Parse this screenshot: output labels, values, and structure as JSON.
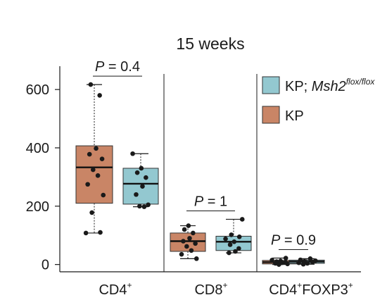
{
  "chart_data": {
    "type": "box",
    "title": "15 weeks",
    "xlabel": "",
    "ylabel": "",
    "ylim": [
      -25,
      680
    ],
    "yticks": [
      0,
      200,
      400,
      600
    ],
    "grid": false,
    "legend_position": "top-right",
    "groups": [
      {
        "label": {
          "base": "CD4",
          "sup": "+"
        },
        "p_value": {
          "p": "P",
          "rest": " = 0.4"
        },
        "boxes": [
          {
            "series": "KP",
            "q1": 210,
            "median": 333,
            "q3": 407,
            "min": 108,
            "max": 617,
            "points": [
              108,
              110,
              178,
              238,
              275,
              305,
              325,
              362,
              378,
              398,
              580,
              617
            ]
          },
          {
            "series": "KP; Msh2 flox/flox",
            "q1": 207,
            "median": 277,
            "q3": 330,
            "min": 198,
            "max": 380,
            "points": [
              198,
              200,
              205,
              240,
              268,
              298,
              315,
              330,
              380
            ]
          }
        ]
      },
      {
        "label": {
          "base": "CD8",
          "sup": "+"
        },
        "p_value": {
          "p": "P",
          "rest": " = 1"
        },
        "boxes": [
          {
            "series": "KP",
            "q1": 45,
            "median": 80,
            "q3": 108,
            "min": 20,
            "max": 133,
            "points": [
              20,
              35,
              48,
              62,
              72,
              80,
              90,
              108,
              120,
              133
            ]
          },
          {
            "series": "KP; Msh2 flox/flox",
            "q1": 48,
            "median": 78,
            "q3": 97,
            "min": 40,
            "max": 155,
            "points": [
              40,
              45,
              55,
              68,
              78,
              88,
              95,
              102,
              155
            ]
          }
        ]
      },
      {
        "label": {
          "base1": "CD4",
          "sup1": "+",
          "base2": "FOXP3",
          "sup2": "+"
        },
        "p_value": {
          "p": "P",
          "rest": " = 0.9"
        },
        "boxes": [
          {
            "series": "KP",
            "q1": 2,
            "median": 8,
            "q3": 14,
            "min": 0,
            "max": 22,
            "points": [
              0,
              2,
              4,
              6,
              8,
              10,
              12,
              15,
              22
            ]
          },
          {
            "series": "KP; Msh2 flox/flox",
            "q1": 4,
            "median": 10,
            "q3": 15,
            "min": 1,
            "max": 20,
            "points": [
              1,
              4,
              6,
              9,
              11,
              13,
              16,
              20
            ]
          }
        ]
      }
    ],
    "legend": [
      {
        "series": "KP; Msh2 flox/flox",
        "prefix": "KP; ",
        "gene": "Msh2",
        "sup": "flox/flox",
        "color": "#93c8d0"
      },
      {
        "series": "KP",
        "text": "KP",
        "color": "#c98566"
      }
    ],
    "colors": {
      "KP": "#c98566",
      "KP; Msh2 flox/flox": "#93c8d0",
      "point": "#1a1a1a",
      "axis": "#1a1a1a"
    }
  }
}
